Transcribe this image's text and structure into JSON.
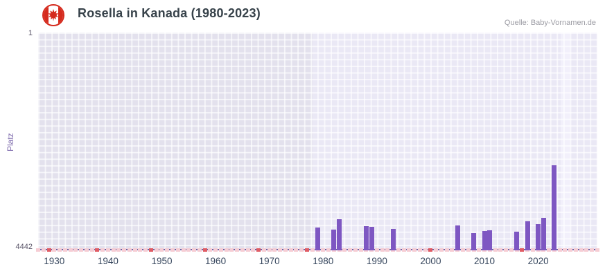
{
  "header": {
    "title": "Rosella in Kanada (1980-2023)",
    "source": "Quelle: Baby-Vornamen.de",
    "flag_red": "#d52b1e",
    "flag_white": "#ffffff"
  },
  "chart_data": {
    "type": "bar",
    "title": "Rosella in Kanada (1980-2023)",
    "xlabel": "",
    "ylabel": "Platz",
    "y_axis": {
      "top_tick": "1",
      "bottom_tick": "4442",
      "min": 1,
      "max": 4442,
      "inverted": true
    },
    "x_axis": {
      "min": 1927,
      "max": 2031,
      "ticks": [
        1930,
        1940,
        1950,
        1960,
        1970,
        1980,
        1990,
        2000,
        2010,
        2020
      ]
    },
    "series": [
      {
        "name": "Platz",
        "points": [
          {
            "year": 1979,
            "rank": 3970
          },
          {
            "year": 1982,
            "rank": 4020
          },
          {
            "year": 1983,
            "rank": 3810
          },
          {
            "year": 1988,
            "rank": 3950
          },
          {
            "year": 1989,
            "rank": 3965
          },
          {
            "year": 1993,
            "rank": 4010
          },
          {
            "year": 2005,
            "rank": 3935
          },
          {
            "year": 2008,
            "rank": 4090
          },
          {
            "year": 2010,
            "rank": 4040
          },
          {
            "year": 2011,
            "rank": 4035
          },
          {
            "year": 2016,
            "rank": 4060
          },
          {
            "year": 2018,
            "rank": 3850
          },
          {
            "year": 2020,
            "rank": 3905
          },
          {
            "year": 2021,
            "rank": 3780
          },
          {
            "year": 2023,
            "rank": 2710
          }
        ]
      }
    ],
    "no_data_markers": {
      "light_years_range": [
        1927,
        2031
      ],
      "dark_years": [
        1929,
        1938,
        1948,
        1958,
        1968,
        1977,
        2000,
        2017
      ]
    },
    "bands": [
      {
        "from": 1927,
        "to": 1978,
        "color": "#e3e1ed"
      },
      {
        "from": 1978,
        "to": 2031,
        "color": "#eae8f5"
      },
      {
        "from": 2024.2,
        "to": 2026.0,
        "color": "#f2f0fb"
      }
    ],
    "colors": {
      "bar": "#7e57c2",
      "marker_light": "#f6cdd4",
      "marker_dark": "#e05c64",
      "axis_line": "#6f5fa0",
      "grid": "#ffffff"
    },
    "legend": "none",
    "grid": true
  }
}
